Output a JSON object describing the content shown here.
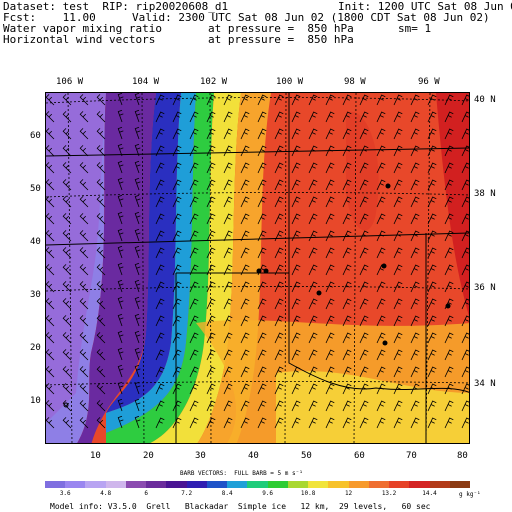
{
  "header": {
    "dataset_line": "Dataset: test  RIP: rip20020608_d1",
    "init_line": "Init: 1200 UTC Sat 08 Jun 02",
    "fcst_line": "Fcst:    11.00",
    "valid_line": "Valid: 2300 UTC Sat 08 Jun 02 (1800 CDT Sat 08 Jun 02)",
    "field1_name": "Water vapor mixing ratio",
    "field1_level": "at pressure =  850 hPa",
    "field1_extra": "sm= 1",
    "field2_name": "Horizontal wind vectors",
    "field2_level": "at pressure =  850 hPa"
  },
  "top_axis": [
    "106 W",
    "104 W",
    "102 W",
    "100 W",
    "98 W",
    "96 W"
  ],
  "right_axis": [
    "40 N",
    "38 N",
    "36 N",
    "34 N"
  ],
  "left_axis": [
    "60",
    "50",
    "40",
    "30",
    "20",
    "10"
  ],
  "bottom_axis": [
    "10",
    "20",
    "30",
    "40",
    "50",
    "60",
    "70",
    "80"
  ],
  "barbs_caption": "BARB VECTORS:  FULL BARB = 5 m s⁻¹",
  "colorbar": {
    "colors": [
      "#7f6fe0",
      "#9a86f0",
      "#b8a4f2",
      "#cfb6ec",
      "#8b4bb0",
      "#6b2c9c",
      "#4a1493",
      "#2f1eb2",
      "#1e53c8",
      "#1fa0d8",
      "#1fcc7a",
      "#2ecc33",
      "#a9d831",
      "#f1e43a",
      "#f7c22a",
      "#f79a2c",
      "#ef6e30",
      "#e64228",
      "#d42323",
      "#b23a18",
      "#8b3a12"
    ],
    "labels": [
      "3.6",
      "4.8",
      "6",
      "7.2",
      "8.4",
      "9.6",
      "10.8",
      "12",
      "13.2",
      "14.4"
    ],
    "units": "g kg⁻¹"
  },
  "footer": "Model info: V3.5.0  Grell   Blackadar  Simple ice   12 km,  29 levels,   60 sec"
}
